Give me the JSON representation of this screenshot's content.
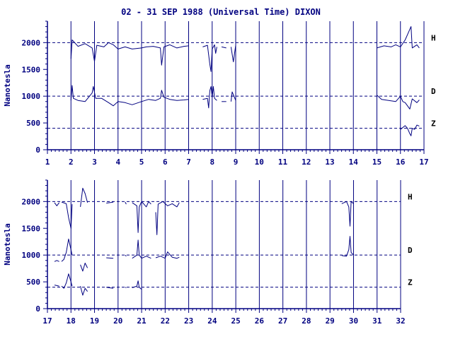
{
  "chart_data": {
    "type": "line",
    "title": "02 - 31 SEP 1988 (Universal Time) DIXON",
    "ylabel": "Nanotesla",
    "ylim": [
      0,
      2400
    ],
    "yticks": [
      0,
      500,
      1000,
      1500,
      2000
    ],
    "reference_lines": [
      2000,
      1000,
      400
    ],
    "components": [
      {
        "name": "H",
        "baseline": 2000
      },
      {
        "name": "D",
        "baseline": 1000
      },
      {
        "name": "Z",
        "baseline": 400
      }
    ],
    "panels": [
      {
        "xlim": [
          1,
          17
        ],
        "xticks": [
          1,
          2,
          3,
          4,
          5,
          6,
          7,
          8,
          9,
          10,
          11,
          12,
          13,
          14,
          15,
          16,
          17
        ],
        "series": [
          {
            "component": "H",
            "segments": [
              [
                [
                  2.0,
                  1700
                ],
                [
                  2.05,
                  2050
                ],
                [
                  2.3,
                  1930
                ],
                [
                  2.6,
                  1980
                ],
                [
                  2.9,
                  1900
                ],
                [
                  3.0,
                  1650
                ],
                [
                  3.1,
                  1950
                ],
                [
                  3.4,
                  1920
                ],
                [
                  3.6,
                  2000
                ],
                [
                  3.8,
                  1960
                ],
                [
                  4.0,
                  1880
                ],
                [
                  4.3,
                  1920
                ],
                [
                  4.6,
                  1880
                ],
                [
                  5.0,
                  1900
                ],
                [
                  5.2,
                  1920
                ],
                [
                  5.5,
                  1930
                ],
                [
                  5.8,
                  1900
                ],
                [
                  5.85,
                  1580
                ],
                [
                  5.95,
                  1920
                ],
                [
                  6.2,
                  1960
                ],
                [
                  6.5,
                  1900
                ],
                [
                  6.8,
                  1930
                ],
                [
                  7.0,
                  1940
                ]
              ],
              [
                [
                  7.6,
                  1920
                ],
                [
                  7.8,
                  1950
                ],
                [
                  7.9,
                  1600
                ],
                [
                  7.95,
                  1460
                ],
                [
                  8.0,
                  1880
                ],
                [
                  8.1,
                  1960
                ],
                [
                  8.15,
                  1800
                ],
                [
                  8.2,
                  1920
                ]
              ],
              [
                [
                  8.4,
                  1920
                ],
                [
                  8.6,
                  1900
                ]
              ],
              [
                [
                  8.8,
                  1920
                ],
                [
                  8.9,
                  1640
                ],
                [
                  9.0,
                  1950
                ]
              ],
              [
                [
                  15.0,
                  1900
                ],
                [
                  15.3,
                  1940
                ],
                [
                  15.6,
                  1920
                ],
                [
                  15.8,
                  1960
                ],
                [
                  16.0,
                  1920
                ],
                [
                  16.2,
                  2050
                ],
                [
                  16.35,
                  2200
                ],
                [
                  16.45,
                  2300
                ],
                [
                  16.5,
                  1900
                ],
                [
                  16.7,
                  1960
                ],
                [
                  16.8,
                  1900
                ]
              ]
            ]
          },
          {
            "component": "D",
            "segments": [
              [
                [
                  2.0,
                  920
                ],
                [
                  2.05,
                  1200
                ],
                [
                  2.1,
                  960
                ],
                [
                  2.3,
                  920
                ],
                [
                  2.6,
                  900
                ],
                [
                  2.9,
                  1060
                ],
                [
                  2.95,
                  1180
                ],
                [
                  3.05,
                  960
                ],
                [
                  3.3,
                  960
                ],
                [
                  3.6,
                  880
                ],
                [
                  3.8,
                  820
                ],
                [
                  4.0,
                  900
                ],
                [
                  4.3,
                  880
                ],
                [
                  4.6,
                  840
                ],
                [
                  5.0,
                  900
                ],
                [
                  5.3,
                  940
                ],
                [
                  5.6,
                  920
                ],
                [
                  5.8,
                  960
                ],
                [
                  5.85,
                  1110
                ],
                [
                  5.95,
                  980
                ],
                [
                  6.2,
                  940
                ],
                [
                  6.5,
                  920
                ],
                [
                  6.8,
                  930
                ],
                [
                  7.0,
                  940
                ]
              ],
              [
                [
                  7.6,
                  940
                ],
                [
                  7.8,
                  960
                ],
                [
                  7.85,
                  780
                ],
                [
                  7.9,
                  1100
                ],
                [
                  7.95,
                  1180
                ],
                [
                  8.0,
                  980
                ],
                [
                  8.05,
                  1180
                ],
                [
                  8.1,
                  960
                ],
                [
                  8.2,
                  920
                ]
              ],
              [
                [
                  8.4,
                  900
                ],
                [
                  8.6,
                  900
                ]
              ],
              [
                [
                  8.8,
                  900
                ],
                [
                  8.85,
                  1080
                ],
                [
                  9.0,
                  920
                ]
              ],
              [
                [
                  15.0,
                  1020
                ],
                [
                  15.2,
                  940
                ],
                [
                  15.5,
                  920
                ],
                [
                  15.8,
                  900
                ],
                [
                  16.0,
                  1000
                ],
                [
                  16.1,
                  900
                ],
                [
                  16.2,
                  880
                ],
                [
                  16.3,
                  820
                ],
                [
                  16.4,
                  760
                ],
                [
                  16.5,
                  950
                ],
                [
                  16.7,
                  880
                ],
                [
                  16.8,
                  930
                ]
              ]
            ]
          },
          {
            "component": "Z",
            "segments": [
              [
                [
                  16.0,
                  380
                ],
                [
                  16.2,
                  450
                ],
                [
                  16.3,
                  400
                ],
                [
                  16.4,
                  300
                ],
                [
                  16.45,
                  260
                ],
                [
                  16.5,
                  400
                ],
                [
                  16.6,
                  380
                ],
                [
                  16.7,
                  460
                ],
                [
                  16.8,
                  440
                ]
              ]
            ]
          }
        ]
      },
      {
        "xlim": [
          17,
          32
        ],
        "xticks": [
          17,
          18,
          19,
          20,
          21,
          22,
          23,
          24,
          25,
          26,
          27,
          28,
          29,
          30,
          31,
          32
        ],
        "series": [
          {
            "component": "H",
            "segments": [
              [
                [
                  17.3,
                  1980
                ],
                [
                  17.4,
                  1920
                ],
                [
                  17.5,
                  1980
                ]
              ],
              [
                [
                  17.6,
                  1990
                ],
                [
                  17.8,
                  1960
                ],
                [
                  17.9,
                  1700
                ],
                [
                  18.0,
                  1500
                ],
                [
                  18.05,
                  1950
                ]
              ],
              [
                [
                  18.4,
                  1900
                ],
                [
                  18.5,
                  2250
                ],
                [
                  18.6,
                  2150
                ],
                [
                  18.7,
                  1980
                ]
              ],
              [
                [
                  19.5,
                  1970
                ],
                [
                  19.8,
                  1990
                ]
              ],
              [
                [
                  20.3,
                  1990
                ],
                [
                  20.35,
                  1950
                ]
              ],
              [
                [
                  20.6,
                  1980
                ],
                [
                  20.8,
                  1920
                ],
                [
                  20.85,
                  1420
                ],
                [
                  20.9,
                  1900
                ],
                [
                  21.0,
                  2000
                ],
                [
                  21.2,
                  1900
                ],
                [
                  21.3,
                  2000
                ],
                [
                  21.4,
                  1950
                ]
              ],
              [
                [
                  21.6,
                  1800
                ],
                [
                  21.65,
                  1380
                ],
                [
                  21.7,
                  1950
                ],
                [
                  21.9,
                  2000
                ],
                [
                  22.1,
                  1920
                ],
                [
                  22.3,
                  1960
                ],
                [
                  22.5,
                  1900
                ],
                [
                  22.6,
                  1980
                ]
              ],
              [
                [
                  29.5,
                  1960
                ],
                [
                  29.7,
                  2000
                ],
                [
                  29.8,
                  1900
                ],
                [
                  29.85,
                  1540
                ],
                [
                  29.9,
                  2000
                ],
                [
                  30.0,
                  1960
                ]
              ]
            ]
          },
          {
            "component": "D",
            "segments": [
              [
                [
                  17.3,
                  880
                ],
                [
                  17.4,
                  900
                ],
                [
                  17.5,
                  880
                ]
              ],
              [
                [
                  17.6,
                  880
                ],
                [
                  17.7,
                  920
                ],
                [
                  17.8,
                  1050
                ],
                [
                  17.9,
                  1300
                ],
                [
                  18.0,
                  1100
                ],
                [
                  18.05,
                  1000
                ]
              ],
              [
                [
                  18.4,
                  820
                ],
                [
                  18.5,
                  700
                ],
                [
                  18.6,
                  850
                ],
                [
                  18.7,
                  760
                ]
              ],
              [
                [
                  19.5,
                  950
                ],
                [
                  19.8,
                  940
                ]
              ],
              [
                [
                  20.3,
                  1000
                ],
                [
                  20.35,
                  980
                ]
              ],
              [
                [
                  20.6,
                  940
                ],
                [
                  20.8,
                  1000
                ],
                [
                  20.85,
                  1280
                ],
                [
                  20.9,
                  1000
                ],
                [
                  21.0,
                  940
                ],
                [
                  21.2,
                  980
                ],
                [
                  21.3,
                  960
                ],
                [
                  21.4,
                  940
                ]
              ],
              [
                [
                  21.6,
                  950
                ],
                [
                  21.8,
                  980
                ],
                [
                  22.0,
                  940
                ],
                [
                  22.1,
                  1060
                ],
                [
                  22.3,
                  960
                ],
                [
                  22.5,
                  940
                ],
                [
                  22.6,
                  960
                ]
              ],
              [
                [
                  29.5,
                  990
                ],
                [
                  29.7,
                  980
                ],
                [
                  29.8,
                  1100
                ],
                [
                  29.85,
                  1350
                ],
                [
                  29.9,
                  1050
                ],
                [
                  30.0,
                  1000
                ]
              ]
            ]
          },
          {
            "component": "Z",
            "segments": [
              [
                [
                  17.3,
                  440
                ],
                [
                  17.5,
                  420
                ]
              ],
              [
                [
                  17.6,
                  420
                ],
                [
                  17.7,
                  380
                ],
                [
                  17.8,
                  480
                ],
                [
                  17.9,
                  650
                ],
                [
                  18.0,
                  500
                ],
                [
                  18.05,
                  420
                ]
              ],
              [
                [
                  18.4,
                  420
                ],
                [
                  18.5,
                  250
                ],
                [
                  18.6,
                  380
                ],
                [
                  18.7,
                  320
                ]
              ],
              [
                [
                  19.5,
                  400
                ],
                [
                  19.8,
                  380
                ]
              ],
              [
                [
                  20.3,
                  400
                ],
                [
                  20.35,
                  390
                ]
              ],
              [
                [
                  20.6,
                  390
                ],
                [
                  20.8,
                  420
                ],
                [
                  20.85,
                  520
                ],
                [
                  20.9,
                  400
                ],
                [
                  21.0,
                  360
                ]
              ]
            ]
          }
        ]
      }
    ]
  }
}
